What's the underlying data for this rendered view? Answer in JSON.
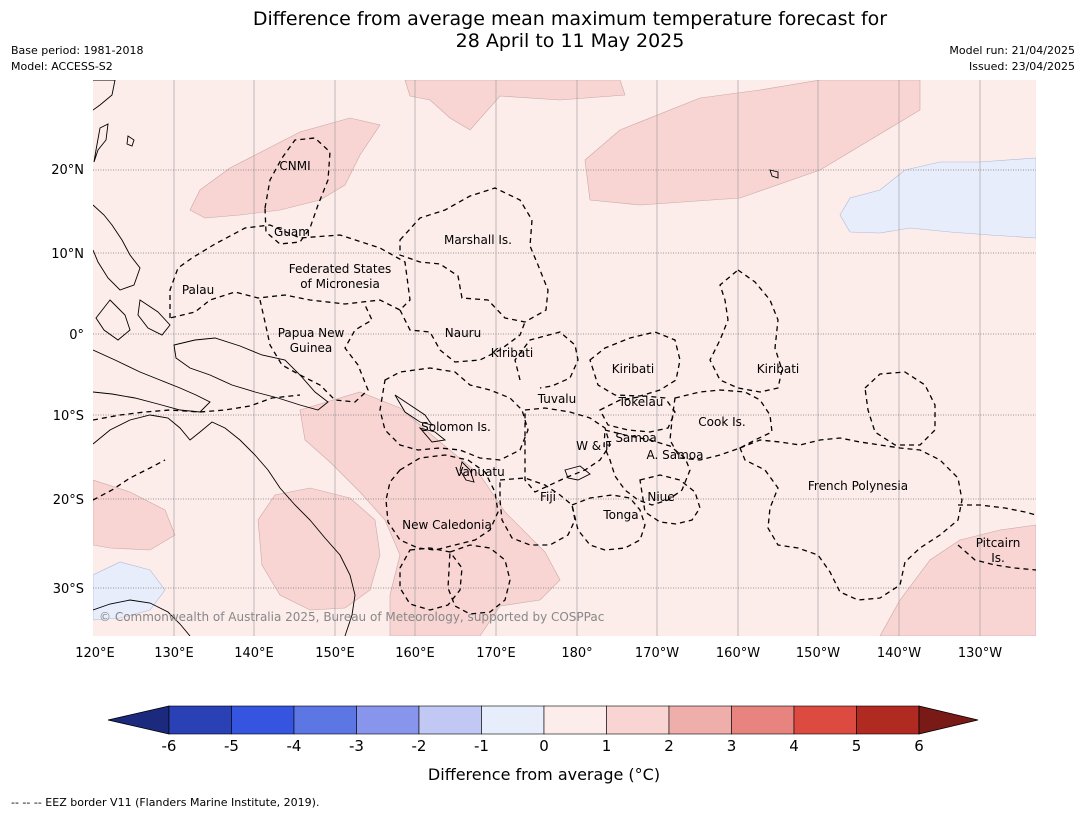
{
  "header": {
    "title_line1": "Difference from average mean maximum temperature forecast for",
    "title_line2": "28 April to 11 May 2025",
    "base_period": "Base period: 1981-2018",
    "model": "Model: ACCESS-S2",
    "model_run": "Model run: 21/04/2025",
    "issued": "Issued: 23/04/2025"
  },
  "map": {
    "copyright": "© Commonwealth of Australia 2025, Bureau of Meteorology, supported by COSPPac",
    "lon_ticks": [
      "120°E",
      "130°E",
      "140°E",
      "150°E",
      "160°E",
      "170°E",
      "180°",
      "170°W",
      "160°W",
      "150°W",
      "140°W",
      "130°W"
    ],
    "lat_ticks": [
      "20°N",
      "10°N",
      "0°",
      "10°S",
      "20°S",
      "30°S"
    ],
    "regions": [
      "CNMI",
      "Guam",
      "Marshall Is.",
      "Federated States",
      "of Micronesia",
      "Palau",
      "Papua New",
      "Guinea",
      "Nauru",
      "Kiribati",
      "Kiribati",
      "Kiribati",
      "Tuvalu",
      "Tokelau",
      "Cook Is.",
      "Solomon Is.",
      "W & F",
      "Samoa",
      "A. Samoa",
      "Vanuatu",
      "Fiji",
      "Niue",
      "Tonga",
      "French Polynesia",
      "New Caledonia",
      "Pitcairn",
      "Is."
    ]
  },
  "colorbar": {
    "ticks": [
      "-6",
      "-5",
      "-4",
      "-3",
      "-2",
      "-1",
      "0",
      "1",
      "2",
      "3",
      "4",
      "5",
      "6"
    ],
    "colors": [
      "#1b2a7c",
      "#2a40b5",
      "#3555e0",
      "#5c76e4",
      "#8796ec",
      "#c0c8f3",
      "#e8edfb",
      "#fcecea",
      "#f8d5d3",
      "#f0aeaa",
      "#e8847f",
      "#dc4a40",
      "#b02a22",
      "#7a1a16"
    ],
    "label": "Difference from average (°C)"
  },
  "footer": {
    "eez_note": "--  --  -- EEZ border V11 (Flanders Marine Institute, 2019)."
  }
}
